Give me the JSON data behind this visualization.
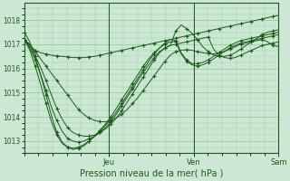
{
  "title": "",
  "xlabel": "Pression niveau de la mer( hPa )",
  "bg_color": "#cce8d4",
  "plot_bg_color": "#cce8d4",
  "grid_color": "#99cc99",
  "line_color": "#1a5c1a",
  "ylim": [
    1012.5,
    1018.7
  ],
  "yticks": [
    1013,
    1014,
    1015,
    1016,
    1017,
    1018
  ],
  "xtick_positions": [
    0.333,
    0.667,
    1.0
  ],
  "xtick_labels": [
    "Jeu",
    "Ven",
    "Sam"
  ],
  "lines": [
    [
      1017.2,
      1016.95,
      1016.75,
      1016.65,
      1016.6,
      1016.55,
      1016.52,
      1016.5,
      1016.48,
      1016.45,
      1016.45,
      1016.45,
      1016.48,
      1016.5,
      1016.55,
      1016.6,
      1016.65,
      1016.7,
      1016.75,
      1016.8,
      1016.85,
      1016.9,
      1016.95,
      1017.0,
      1017.05,
      1017.1,
      1017.15,
      1017.2,
      1017.25,
      1017.3,
      1017.35,
      1017.4,
      1017.45,
      1017.5,
      1017.55,
      1017.6,
      1017.65,
      1017.7,
      1017.75,
      1017.8,
      1017.85,
      1017.9,
      1017.95,
      1018.0,
      1018.05,
      1018.1,
      1018.15,
      1018.2
    ],
    [
      1017.2,
      1017.0,
      1016.7,
      1016.4,
      1016.1,
      1015.8,
      1015.5,
      1015.2,
      1014.9,
      1014.6,
      1014.3,
      1014.1,
      1013.95,
      1013.85,
      1013.8,
      1013.8,
      1013.85,
      1013.95,
      1014.1,
      1014.3,
      1014.55,
      1014.8,
      1015.1,
      1015.4,
      1015.7,
      1016.0,
      1016.3,
      1016.55,
      1016.7,
      1016.75,
      1016.78,
      1016.75,
      1016.7,
      1016.65,
      1016.62,
      1016.6,
      1016.65,
      1016.7,
      1016.8,
      1016.9,
      1017.0,
      1017.05,
      1017.1,
      1017.15,
      1017.2,
      1017.1,
      1016.95,
      1016.9
    ],
    [
      1017.2,
      1016.9,
      1016.5,
      1016.05,
      1015.5,
      1014.9,
      1014.35,
      1013.9,
      1013.55,
      1013.35,
      1013.25,
      1013.2,
      1013.2,
      1013.25,
      1013.35,
      1013.5,
      1013.7,
      1013.95,
      1014.25,
      1014.6,
      1014.95,
      1015.3,
      1015.65,
      1016.0,
      1016.35,
      1016.65,
      1016.85,
      1016.95,
      1017.0,
      1017.05,
      1017.1,
      1017.15,
      1017.2,
      1017.25,
      1017.3,
      1016.8,
      1016.55,
      1016.45,
      1016.42,
      1016.45,
      1016.55,
      1016.65,
      1016.75,
      1016.85,
      1016.95,
      1017.0,
      1017.05,
      1017.1
    ],
    [
      1017.2,
      1016.85,
      1016.35,
      1015.75,
      1015.1,
      1014.4,
      1013.85,
      1013.4,
      1013.1,
      1013.0,
      1012.95,
      1013.0,
      1013.1,
      1013.2,
      1013.35,
      1013.55,
      1013.8,
      1014.1,
      1014.45,
      1014.8,
      1015.15,
      1015.5,
      1015.85,
      1016.15,
      1016.45,
      1016.7,
      1016.85,
      1016.95,
      1017.55,
      1017.8,
      1017.65,
      1017.45,
      1017.2,
      1016.9,
      1016.7,
      1016.55,
      1016.5,
      1016.5,
      1016.55,
      1016.65,
      1016.8,
      1016.95,
      1017.1,
      1017.25,
      1017.4,
      1017.5,
      1017.55,
      1017.6
    ],
    [
      1017.2,
      1016.75,
      1016.1,
      1015.35,
      1014.55,
      1013.8,
      1013.25,
      1012.9,
      1012.75,
      1012.7,
      1012.75,
      1012.85,
      1013.0,
      1013.2,
      1013.4,
      1013.65,
      1013.9,
      1014.2,
      1014.55,
      1014.9,
      1015.25,
      1015.6,
      1015.95,
      1016.3,
      1016.6,
      1016.85,
      1017.05,
      1017.2,
      1017.15,
      1016.65,
      1016.35,
      1016.2,
      1016.2,
      1016.25,
      1016.35,
      1016.5,
      1016.65,
      1016.8,
      1016.95,
      1017.05,
      1017.15,
      1017.2,
      1017.25,
      1017.3,
      1017.35,
      1017.4,
      1017.45,
      1017.5
    ],
    [
      1017.5,
      1017.1,
      1016.5,
      1015.75,
      1014.9,
      1014.05,
      1013.35,
      1012.95,
      1012.75,
      1012.65,
      1012.7,
      1012.8,
      1013.0,
      1013.2,
      1013.45,
      1013.7,
      1014.0,
      1014.35,
      1014.7,
      1015.05,
      1015.4,
      1015.75,
      1016.1,
      1016.4,
      1016.65,
      1016.85,
      1017.0,
      1017.1,
      1017.1,
      1016.6,
      1016.3,
      1016.15,
      1016.1,
      1016.15,
      1016.25,
      1016.4,
      1016.55,
      1016.7,
      1016.85,
      1016.95,
      1017.05,
      1017.1,
      1017.15,
      1017.2,
      1017.25,
      1017.3,
      1017.35,
      1017.4
    ]
  ]
}
